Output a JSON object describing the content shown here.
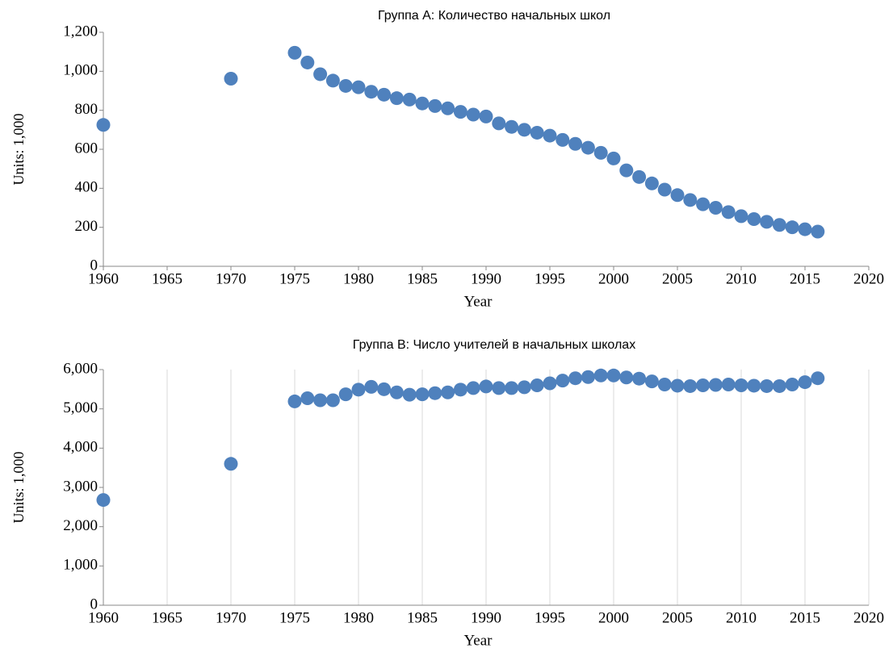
{
  "chart_data": [
    {
      "type": "scatter",
      "title": "Группа А: Количество начальных школ",
      "xlabel": "Year",
      "ylabel": "Units: 1,000",
      "color": "#4f81bd",
      "xgrid": false,
      "xlim": [
        1960,
        2020
      ],
      "xticks": [
        1960,
        1965,
        1970,
        1975,
        1980,
        1985,
        1990,
        1995,
        2000,
        2005,
        2010,
        2015,
        2020
      ],
      "ylim": [
        0,
        1200
      ],
      "yticks": [
        0,
        200,
        400,
        600,
        800,
        {
          "value": 1000,
          "label": "1,000"
        },
        {
          "value": 1200,
          "label": "1,200"
        }
      ],
      "x": [
        1960,
        1970,
        1975,
        1976,
        1977,
        1978,
        1979,
        1980,
        1981,
        1982,
        1983,
        1984,
        1985,
        1986,
        1987,
        1988,
        1989,
        1990,
        1991,
        1992,
        1993,
        1994,
        1995,
        1996,
        1997,
        1998,
        1999,
        2000,
        2001,
        2002,
        2003,
        2004,
        2005,
        2006,
        2007,
        2008,
        2009,
        2010,
        2011,
        2012,
        2013,
        2014,
        2015,
        2016
      ],
      "values": [
        725,
        962,
        1095,
        1045,
        985,
        952,
        925,
        918,
        895,
        880,
        862,
        855,
        835,
        822,
        810,
        792,
        778,
        768,
        733,
        715,
        700,
        685,
        670,
        648,
        628,
        608,
        582,
        553,
        492,
        458,
        425,
        393,
        365,
        340,
        318,
        300,
        278,
        257,
        242,
        228,
        212,
        200,
        190,
        178
      ]
    },
    {
      "type": "scatter",
      "title": "Группа В: Число учителей в начальных школах",
      "xlabel": "Year",
      "ylabel": "Units: 1,000",
      "color": "#4f81bd",
      "xgrid": true,
      "xlim": [
        1960,
        2020
      ],
      "xticks": [
        1960,
        1965,
        1970,
        1975,
        1980,
        1985,
        1990,
        1995,
        2000,
        2005,
        2010,
        2015,
        2020
      ],
      "ylim": [
        0,
        6000
      ],
      "yticks": [
        0,
        {
          "value": 1000,
          "label": "1,000"
        },
        {
          "value": 2000,
          "label": "2,000"
        },
        {
          "value": 3000,
          "label": "3,000"
        },
        {
          "value": 4000,
          "label": "4,000"
        },
        {
          "value": 5000,
          "label": "5,000"
        },
        {
          "value": 6000,
          "label": "6,000"
        }
      ],
      "x": [
        1960,
        1970,
        1975,
        1976,
        1977,
        1978,
        1979,
        1980,
        1981,
        1982,
        1983,
        1984,
        1985,
        1986,
        1987,
        1988,
        1989,
        1990,
        1991,
        1992,
        1993,
        1994,
        1995,
        1996,
        1997,
        1998,
        1999,
        2000,
        2001,
        2002,
        2003,
        2004,
        2005,
        2006,
        2007,
        2008,
        2009,
        2010,
        2011,
        2012,
        2013,
        2014,
        2015,
        2016
      ],
      "values": [
        2680,
        3600,
        5190,
        5270,
        5220,
        5220,
        5370,
        5490,
        5560,
        5500,
        5420,
        5360,
        5370,
        5400,
        5420,
        5490,
        5530,
        5570,
        5530,
        5530,
        5550,
        5600,
        5650,
        5720,
        5780,
        5810,
        5850,
        5850,
        5800,
        5770,
        5700,
        5620,
        5590,
        5580,
        5600,
        5610,
        5620,
        5600,
        5590,
        5580,
        5580,
        5620,
        5680,
        5780
      ]
    }
  ]
}
